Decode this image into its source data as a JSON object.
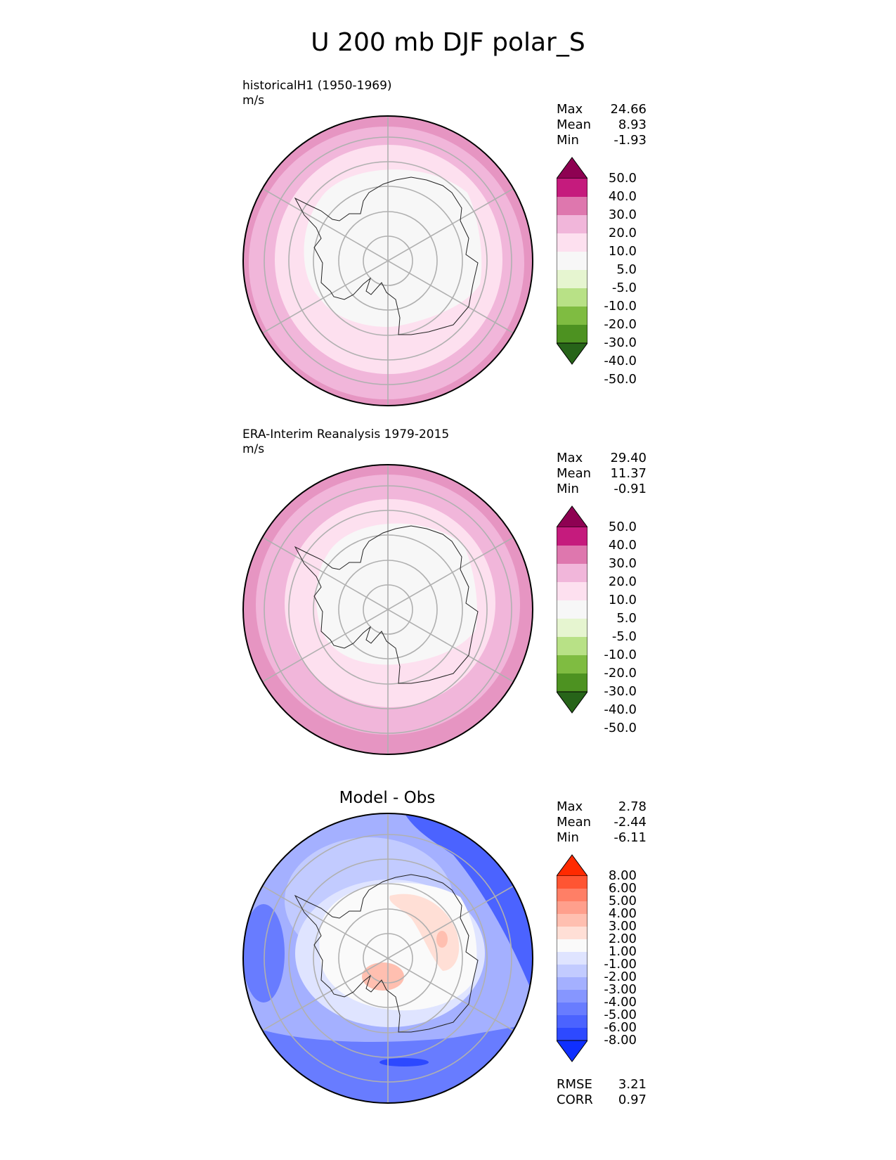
{
  "title": "U 200 mb DJF polar_S",
  "colors": {
    "pink": [
      "#8e0152",
      "#c51b7d",
      "#de77ae",
      "#f1b6da",
      "#fde0ef",
      "#f7f7f7"
    ],
    "green": [
      "#e6f5d0",
      "#b8e186",
      "#7fbc41",
      "#4d9221",
      "#276419"
    ],
    "mapBackground": "#f7f7f7",
    "grid": "#b0b0b0",
    "diff": [
      "#ff2a00",
      "#ff5533",
      "#ff7f66",
      "#ff9f8c",
      "#ffbfb0",
      "#ffdfd6",
      "#fafafa",
      "#dfe4ff",
      "#c2cbff",
      "#a4b0ff",
      "#8696ff",
      "#687cff",
      "#4b63ff",
      "#2d49ff",
      "#0f2fff"
    ]
  },
  "panels": {
    "test": {
      "name": "historicalH1 (1950-1969)",
      "units": "m/s",
      "stats": {
        "max_label": "Max",
        "max": "24.66",
        "mean_label": "Mean",
        "mean": "8.93",
        "min_label": "Min",
        "min": "-1.93"
      }
    },
    "ref": {
      "name": "ERA-Interim Reanalysis 1979-2015",
      "units": "m/s",
      "stats": {
        "max_label": "Max",
        "max": "29.40",
        "mean_label": "Mean",
        "mean": "11.37",
        "min_label": "Min",
        "min": "-0.91"
      }
    },
    "diff": {
      "name": "Model - Obs",
      "stats": {
        "max_label": "Max",
        "max": "2.78",
        "mean_label": "Mean",
        "mean": "-2.44",
        "min_label": "Min",
        "min": "-6.11"
      },
      "metrics": {
        "rmse_label": "RMSE",
        "rmse": "3.21",
        "corr_label": "CORR",
        "corr": "0.97"
      }
    }
  },
  "chart_data": [
    {
      "type": "heatmap",
      "projection": "south-polar-stereographic",
      "title": "historicalH1 (1950-1969)",
      "units": "m/s",
      "colorbar_levels": [
        "50.0",
        "40.0",
        "30.0",
        "20.0",
        "10.0",
        "5.0",
        "-5.0",
        "-10.0",
        "-20.0",
        "-30.0",
        "-40.0",
        "-50.0"
      ],
      "zonal_bands_m_s": [
        {
          "level": 0,
          "outer": 21
        },
        {
          "level": 1,
          "outer": 8
        },
        {
          "level": 2,
          "outer": 23
        },
        {
          "level": 3,
          "outer": 24
        },
        {
          "level": 4,
          "outer": 24
        }
      ],
      "max": 24.66,
      "mean": 8.93,
      "min": -1.93
    },
    {
      "type": "heatmap",
      "projection": "south-polar-stereographic",
      "title": "ERA-Interim Reanalysis 1979-2015",
      "units": "m/s",
      "colorbar_levels": [
        "50.0",
        "40.0",
        "30.0",
        "20.0",
        "10.0",
        "5.0",
        "-5.0",
        "-10.0",
        "-20.0",
        "-30.0",
        "-40.0",
        "-50.0"
      ],
      "max": 29.4,
      "mean": 11.37,
      "min": -0.91
    },
    {
      "type": "heatmap",
      "projection": "south-polar-stereographic",
      "title": "Model - Obs",
      "units": "m/s",
      "colorbar_levels": [
        "8.00",
        "6.00",
        "5.00",
        "4.00",
        "3.00",
        "2.00",
        "1.00",
        "-1.00",
        "-2.00",
        "-3.00",
        "-4.00",
        "-5.00",
        "-6.00",
        "-8.00"
      ],
      "max": 2.78,
      "mean": -2.44,
      "min": -6.11,
      "rmse": 3.21,
      "corr": 0.97
    }
  ]
}
